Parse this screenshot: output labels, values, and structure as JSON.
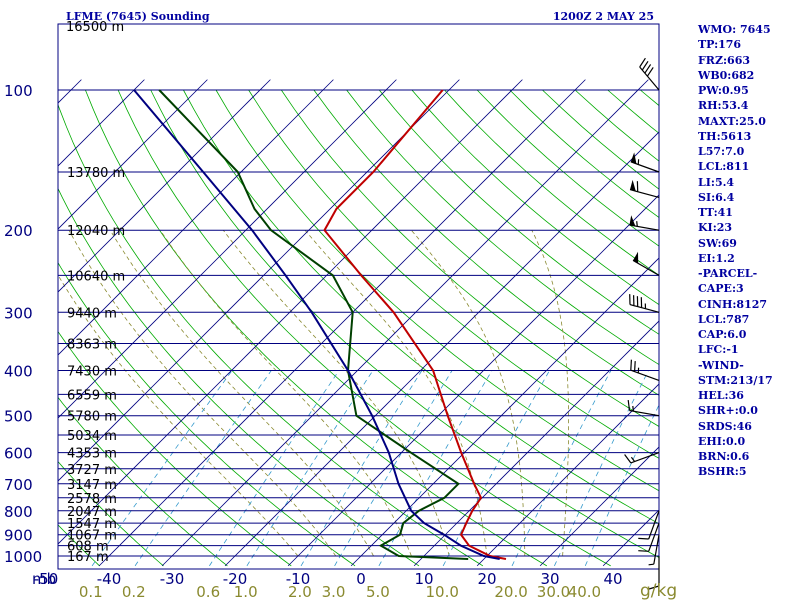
{
  "chart_data": {
    "type": "line",
    "title": "LFME (7645) Sounding",
    "subtitle": "1200Z  2 MAY 25",
    "xlabel": "",
    "ylabel": "mb",
    "mixing_ratio_label": "g/kg",
    "x_ticks": [
      -50,
      -40,
      -30,
      -20,
      -10,
      0,
      10,
      20,
      30,
      40
    ],
    "xlim": [
      -50,
      40
    ],
    "ylim": [
      1000,
      100
    ],
    "log_scale_y": true,
    "p_ticks": [
      100,
      200,
      300,
      400,
      500,
      600,
      700,
      800,
      900,
      1000
    ],
    "height_levels": [
      {
        "p": 150,
        "label": "13780 m"
      },
      {
        "p": 200,
        "label": "12040 m"
      },
      {
        "p": 250,
        "label": "10640 m"
      },
      {
        "p": 300,
        "label": "9440 m"
      },
      {
        "p": 350,
        "label": "8363 m"
      },
      {
        "p": 400,
        "label": "7430 m"
      },
      {
        "p": 450,
        "label": "6559 m"
      },
      {
        "p": 500,
        "label": "5780 m"
      },
      {
        "p": 550,
        "label": "5034 m"
      },
      {
        "p": 600,
        "label": "4353 m"
      },
      {
        "p": 650,
        "label": "3727 m"
      },
      {
        "p": 700,
        "label": "3147 m"
      },
      {
        "p": 750,
        "label": "2578 m"
      },
      {
        "p": 800,
        "label": "2047 m"
      },
      {
        "p": 850,
        "label": "1547 m"
      },
      {
        "p": 900,
        "label": "1067 m"
      },
      {
        "p": 950,
        "label": "608 m"
      },
      {
        "p": 1000,
        "label": "167 m"
      }
    ],
    "top_height_label": "16500 m",
    "mixing_ratio_ticks": [
      "0.1",
      "0.2",
      "0.6",
      "1.0",
      "2.0",
      "3.0",
      "5.0",
      "10.0",
      "20.0",
      "30.0",
      "40.0"
    ],
    "series": [
      {
        "color": "#c00000",
        "points": [
          {
            "p": 1015,
            "t": 23.5
          },
          {
            "p": 1000,
            "t": 20.5
          },
          {
            "p": 950,
            "t": 15.5
          },
          {
            "p": 900,
            "t": 12.5
          },
          {
            "p": 850,
            "t": 11.5
          },
          {
            "p": 800,
            "t": 10.5
          },
          {
            "p": 750,
            "t": 9.8
          },
          {
            "p": 700,
            "t": 6.5
          },
          {
            "p": 600,
            "t": -0.5
          },
          {
            "p": 500,
            "t": -8.5
          },
          {
            "p": 400,
            "t": -18.0
          },
          {
            "p": 300,
            "t": -33.5
          },
          {
            "p": 250,
            "t": -44.5
          },
          {
            "p": 200,
            "t": -57.5
          },
          {
            "p": 180,
            "t": -59.0
          },
          {
            "p": 150,
            "t": -59.0
          },
          {
            "p": 100,
            "t": -61.0
          }
        ]
      },
      {
        "color": "#004000",
        "points": [
          {
            "p": 1015,
            "t": 17.5
          },
          {
            "p": 1000,
            "t": 6.0
          },
          {
            "p": 950,
            "t": 1.5
          },
          {
            "p": 900,
            "t": 2.8
          },
          {
            "p": 850,
            "t": 1.5
          },
          {
            "p": 800,
            "t": 2.0
          },
          {
            "p": 750,
            "t": 4.0
          },
          {
            "p": 700,
            "t": 4.0
          },
          {
            "p": 600,
            "t": -8.5
          },
          {
            "p": 500,
            "t": -23.0
          },
          {
            "p": 400,
            "t": -31.5
          },
          {
            "p": 300,
            "t": -40.0
          },
          {
            "p": 250,
            "t": -49.0
          },
          {
            "p": 200,
            "t": -66.0
          },
          {
            "p": 180,
            "t": -72.0
          },
          {
            "p": 150,
            "t": -80.5
          },
          {
            "p": 100,
            "t": -106.0
          }
        ]
      },
      {
        "color": "#000080",
        "points": [
          {
            "p": 1015,
            "t": 22.5
          },
          {
            "p": 1000,
            "t": 19.5
          },
          {
            "p": 950,
            "t": 14.2
          },
          {
            "p": 900,
            "t": 9.8
          },
          {
            "p": 850,
            "t": 4.8
          },
          {
            "p": 800,
            "t": 0.8
          },
          {
            "p": 700,
            "t": -5.5
          },
          {
            "p": 600,
            "t": -12.0
          },
          {
            "p": 500,
            "t": -20.5
          },
          {
            "p": 400,
            "t": -31.5
          },
          {
            "p": 300,
            "t": -46.5
          },
          {
            "p": 250,
            "t": -56.5
          },
          {
            "p": 200,
            "t": -69.0
          },
          {
            "p": 150,
            "t": -86.0
          },
          {
            "p": 100,
            "t": -110.0
          }
        ]
      }
    ],
    "wind_barbs": [
      {
        "p": 100,
        "dir": 320,
        "spd": 40
      },
      {
        "p": 150,
        "dir": 290,
        "spd": 55
      },
      {
        "p": 170,
        "dir": 285,
        "spd": 60
      },
      {
        "p": 200,
        "dir": 280,
        "spd": 55
      },
      {
        "p": 250,
        "dir": 300,
        "spd": 50
      },
      {
        "p": 300,
        "dir": 285,
        "spd": 45
      },
      {
        "p": 420,
        "dir": 290,
        "spd": 25
      },
      {
        "p": 500,
        "dir": 280,
        "spd": 15
      },
      {
        "p": 600,
        "dir": 250,
        "spd": 15
      },
      {
        "p": 800,
        "dir": 200,
        "spd": 10
      },
      {
        "p": 850,
        "dir": 200,
        "spd": 10
      },
      {
        "p": 900,
        "dir": 190,
        "spd": 5
      },
      {
        "p": 1000,
        "dir": 180,
        "spd": 10
      }
    ],
    "grid": true,
    "colors": {
      "isobar": "#000080",
      "isotherm": "#000080",
      "dry_adiabat": "#00aa00",
      "moist_adiabat": "#8a8a30",
      "mixing_ratio": "#3399cc",
      "frame": "#000080",
      "mixing_label": "#8a8a30"
    }
  },
  "indices": [
    "WMO: 7645",
    "TP:176",
    "FRZ:663",
    "WB0:682",
    "PW:0.95",
    "RH:53.4",
    "MAXT:25.0",
    "TH:5613",
    "L57:7.0",
    "LCL:811",
    "LI:5.4",
    "SI:6.4",
    "TT:41",
    "KI:23",
    "SW:69",
    "EI:1.2",
    "-PARCEL-",
    "CAPE:3",
    "CINH:8127",
    "LCL:787",
    "CAP:6.0",
    "LFC:-1",
    "-WIND-",
    "STM:213/17",
    "HEL:36",
    "SHR+:0.0",
    "SRDS:46",
    "EHI:0.0",
    "BRN:0.6",
    "BSHR:5"
  ]
}
